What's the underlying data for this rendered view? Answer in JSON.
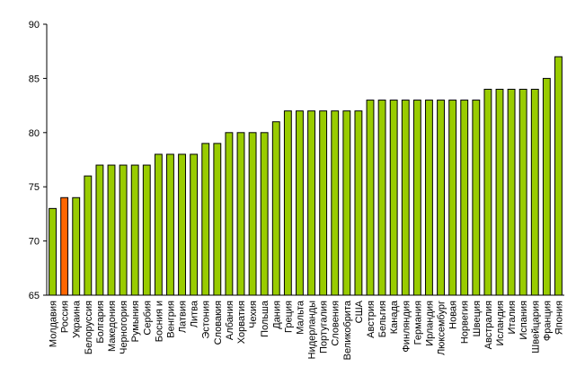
{
  "chart_data": {
    "type": "bar",
    "categories": [
      "Молдавия",
      "Россия",
      "Украина",
      "Белоруссия",
      "Болгария",
      "Македония",
      "Черногория",
      "Румыния",
      "Сербия",
      "Босния и",
      "Венгрия",
      "Латвия",
      "Литва",
      "Эстония",
      "Словакия",
      "Албания",
      "Хорватия",
      "Чехия",
      "Польша",
      "Дания",
      "Греция",
      "Мальта",
      "Нидерланды",
      "Португалия",
      "Словения",
      "Великобрита",
      "США",
      "Австрия",
      "Бельгия",
      "Канада",
      "Финляндия",
      "Германия",
      "Ирландия",
      "Люксембург",
      "Новая",
      "Норвегия",
      "Швеция",
      "Австралия",
      "Исландия",
      "Италия",
      "Испания",
      "Швейцария",
      "Франция",
      "Япония"
    ],
    "values": [
      73,
      74,
      74,
      76,
      77,
      77,
      77,
      77,
      77,
      78,
      78,
      78,
      78,
      79,
      79,
      80,
      80,
      80,
      80,
      81,
      82,
      82,
      82,
      82,
      82,
      82,
      82,
      83,
      83,
      83,
      83,
      83,
      83,
      83,
      83,
      83,
      83,
      84,
      84,
      84,
      84,
      84,
      85,
      87
    ],
    "colors": [
      "#99cc00",
      "#ff6600",
      "#99cc00",
      "#99cc00",
      "#99cc00",
      "#99cc00",
      "#99cc00",
      "#99cc00",
      "#99cc00",
      "#99cc00",
      "#99cc00",
      "#99cc00",
      "#99cc00",
      "#99cc00",
      "#99cc00",
      "#99cc00",
      "#99cc00",
      "#99cc00",
      "#99cc00",
      "#99cc00",
      "#99cc00",
      "#99cc00",
      "#99cc00",
      "#99cc00",
      "#99cc00",
      "#99cc00",
      "#99cc00",
      "#99cc00",
      "#99cc00",
      "#99cc00",
      "#99cc00",
      "#99cc00",
      "#99cc00",
      "#99cc00",
      "#99cc00",
      "#99cc00",
      "#99cc00",
      "#99cc00",
      "#99cc00",
      "#99cc00",
      "#99cc00",
      "#99cc00",
      "#99cc00",
      "#99cc00"
    ],
    "ylim": [
      65,
      90
    ],
    "yticks": [
      65,
      70,
      75,
      80,
      85,
      90
    ],
    "grid": false
  }
}
